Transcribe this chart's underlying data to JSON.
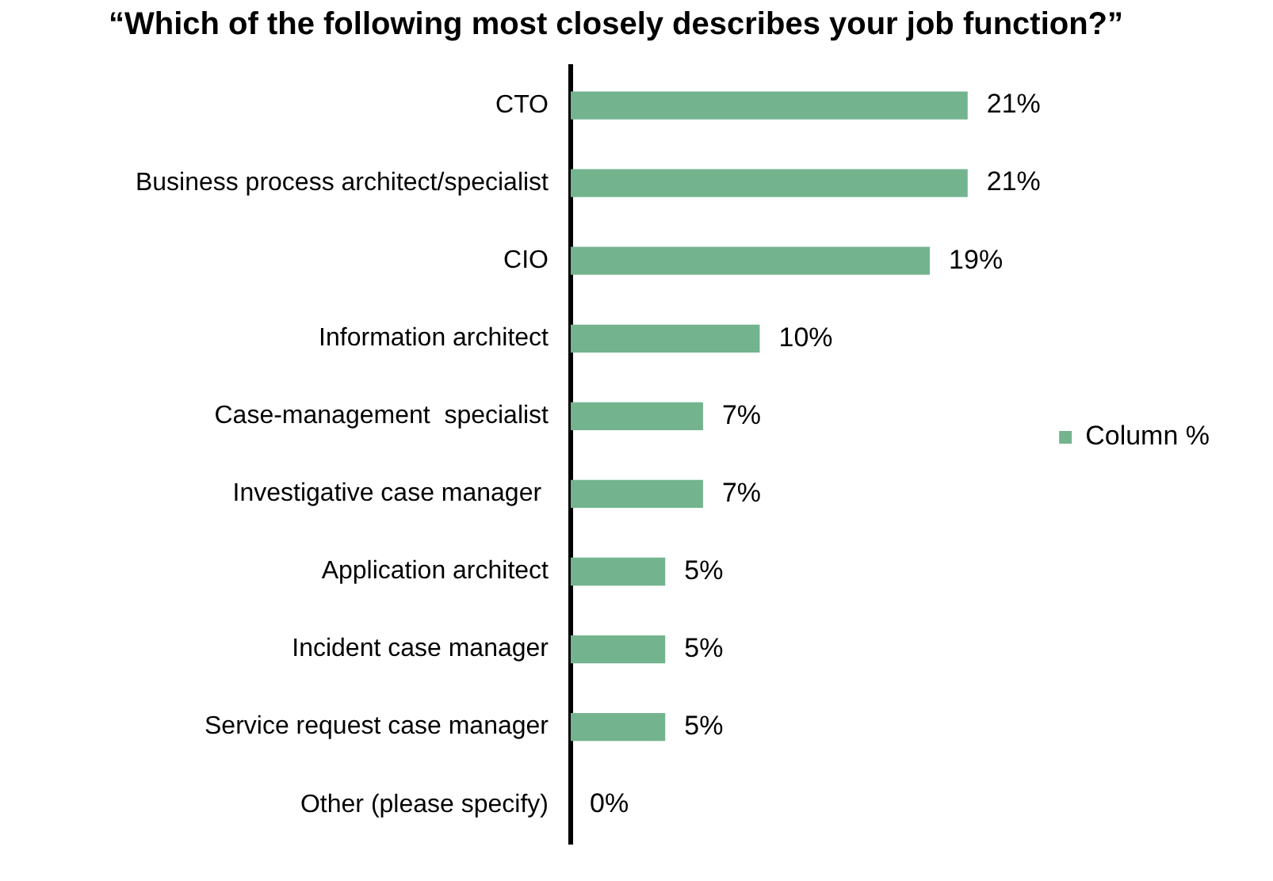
{
  "chart_data": {
    "type": "bar",
    "orientation": "horizontal",
    "title": "“Which of the following most closely describes your job function?”",
    "categories": [
      "CTO",
      "Business process architect/specialist",
      "CIO",
      "Information architect",
      "Case-management  specialist",
      "Investigative case manager ",
      "Application architect",
      "Incident case manager",
      "Service request case manager",
      "Other (please specify)"
    ],
    "series": [
      {
        "name": "Column %",
        "color": "#73b48f",
        "values": [
          21,
          21,
          19,
          10,
          7,
          7,
          5,
          5,
          5,
          0
        ],
        "value_labels": [
          "21%",
          "21%",
          "19%",
          "10%",
          "7%",
          "7%",
          "5%",
          "5%",
          "5%",
          "0%"
        ]
      }
    ],
    "legend": "right",
    "grid": false
  }
}
